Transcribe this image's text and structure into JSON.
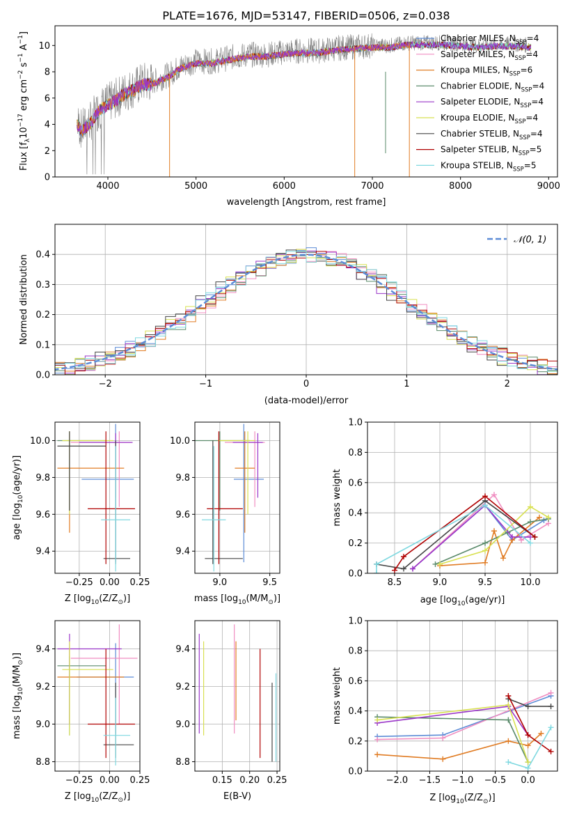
{
  "title": "PLATE=1676, MJD=53147, FIBERID=0506, z=0.038",
  "colors": {
    "chabrier_miles": "#5b8bd6",
    "salpeter_miles": "#f08cc0",
    "kroupa_miles": "#e07b22",
    "chabrier_elodie": "#5a8a6a",
    "salpeter_elodie": "#9a35c8",
    "kroupa_elodie": "#d8e050",
    "chabrier_stelib": "#444444",
    "salpeter_stelib": "#b00000",
    "kroupa_stelib": "#7ed8e0",
    "data": "#808080",
    "gaussian": "#5b8bd6"
  },
  "legend_spectrum": [
    {
      "pre": "Chabrier MILES, N",
      "sub": "SSP",
      "post": "=4",
      "color_key": "chabrier_miles"
    },
    {
      "pre": "Salpeter MILES, N",
      "sub": "SSP",
      "post": "=4",
      "color_key": "salpeter_miles"
    },
    {
      "pre": "Kroupa MILES, N",
      "sub": "SSP",
      "post": "=6",
      "color_key": "kroupa_miles"
    },
    {
      "pre": "Chabrier ELODIE, N",
      "sub": "SSP",
      "post": "=4",
      "color_key": "chabrier_elodie"
    },
    {
      "pre": "Salpeter ELODIE, N",
      "sub": "SSP",
      "post": "=4",
      "color_key": "salpeter_elodie"
    },
    {
      "pre": "Kroupa ELODIE, N",
      "sub": "SSP",
      "post": "=4",
      "color_key": "kroupa_elodie"
    },
    {
      "pre": "Chabrier STELIB, N",
      "sub": "SSP",
      "post": "=4",
      "color_key": "chabrier_stelib"
    },
    {
      "pre": "Salpeter STELIB, N",
      "sub": "SSP",
      "post": "=5",
      "color_key": "salpeter_stelib"
    },
    {
      "pre": "Kroupa STELIB, N",
      "sub": "SSP",
      "post": "=5",
      "color_key": "kroupa_stelib"
    }
  ],
  "legend_hist": {
    "label": "𝒩(0, 1)",
    "color_key": "gaussian"
  },
  "chart_data": [
    {
      "id": "spectrum",
      "type": "line",
      "xlabel": "wavelength [Angstrom, rest frame]",
      "ylabel": "Flux [f",
      "ylabel_parts": [
        "Flux [f",
        "λ",
        "10",
        "−17",
        " erg cm",
        "−2",
        " s",
        "−1",
        " A",
        "−1",
        "]"
      ],
      "xlim": [
        3400,
        9100
      ],
      "ylim": [
        0,
        11.5
      ],
      "xticks": [
        4000,
        5000,
        6000,
        7000,
        8000,
        9000
      ],
      "yticks": [
        0,
        2,
        4,
        6,
        8,
        10
      ],
      "continuum": {
        "x": [
          3650,
          3700,
          3800,
          3900,
          4000,
          4100,
          4200,
          4300,
          4400,
          4500,
          4600,
          4700,
          4800,
          4900,
          5000,
          5200,
          5400,
          5600,
          5800,
          6000,
          6200,
          6400,
          6600,
          6800,
          7000,
          7200,
          7400,
          7600,
          7800,
          8000,
          8200,
          8400,
          8600,
          8800
        ],
        "y": [
          4.2,
          3.6,
          4.2,
          5.2,
          5.6,
          6.0,
          6.5,
          6.8,
          7.2,
          7.2,
          7.5,
          7.8,
          8.3,
          8.6,
          8.8,
          8.8,
          9.1,
          9.3,
          9.3,
          9.5,
          9.6,
          9.6,
          9.8,
          9.9,
          10.0,
          10.0,
          10.2,
          10.2,
          10.2,
          10.1,
          10.0,
          10.1,
          10.1,
          10.0
        ]
      },
      "model_dips": [
        {
          "x": 4700,
          "color_key": "kroupa_miles"
        },
        {
          "x": 6800,
          "color_key": "kroupa_miles"
        },
        {
          "x": 7420,
          "color_key": "kroupa_miles"
        }
      ]
    },
    {
      "id": "residual_hist",
      "type": "bar",
      "xlabel": "(data-model)/error",
      "ylabel": "Normed distribution",
      "xlim": [
        -2.5,
        2.5
      ],
      "ylim": [
        0,
        0.5
      ],
      "xticks": [
        -2,
        -1,
        0,
        1,
        2
      ],
      "yticks": [
        0.0,
        0.1,
        0.2,
        0.3,
        0.4
      ],
      "bin_width": 0.1
    },
    {
      "id": "age_vs_Z",
      "type": "scatter",
      "xlabel_parts": [
        "Z [log",
        "10",
        "(Z/Z",
        "⊙",
        ")]"
      ],
      "ylabel_parts": [
        "age  [log",
        "10",
        "(age/yr)]"
      ],
      "xlim": [
        -0.45,
        0.25
      ],
      "ylim": [
        9.28,
        10.1
      ],
      "xticks": [
        -0.25,
        0.0,
        0.25
      ],
      "yticks": [
        9.4,
        9.6,
        9.8,
        10.0
      ],
      "points": [
        {
          "color_key": "chabrier_miles",
          "x": 0.05,
          "xerr": [
            0.28,
            0.15
          ],
          "y": 9.79,
          "yerr": [
            0.45,
            0.3
          ]
        },
        {
          "color_key": "salpeter_miles",
          "x": 0.08,
          "xerr": [
            0.4,
            0.1
          ],
          "y": 9.99,
          "yerr": [
            0.35,
            0.06
          ]
        },
        {
          "color_key": "kroupa_miles",
          "x": -0.33,
          "xerr": [
            0.1,
            0.45
          ],
          "y": 9.85,
          "yerr": [
            0.35,
            0.2
          ]
        },
        {
          "color_key": "chabrier_elodie",
          "x": -0.33,
          "xerr": [
            0.1,
            0.3
          ],
          "y": 10.0,
          "yerr": [
            0.38,
            0.05
          ]
        },
        {
          "color_key": "salpeter_elodie",
          "x": 0.05,
          "xerr": [
            0.3,
            0.14
          ],
          "y": 9.99,
          "yerr": [
            0.3,
            0.05
          ]
        },
        {
          "color_key": "kroupa_elodie",
          "x": -0.33,
          "xerr": [
            0.06,
            0.36
          ],
          "y": 10.0,
          "yerr": [
            0.4,
            0.05
          ]
        },
        {
          "color_key": "chabrier_stelib",
          "x": 0.05,
          "xerr": [
            0.1,
            0.12
          ],
          "y": 9.36,
          "yerr": [
            0.03,
            0.64
          ]
        },
        {
          "color_key": "salpeter_stelib",
          "x": -0.03,
          "xerr": [
            0.15,
            0.24
          ],
          "y": 9.63,
          "yerr": [
            0.3,
            0.42
          ]
        },
        {
          "color_key": "kroupa_stelib",
          "x": 0.05,
          "xerr": [
            0.12,
            0.12
          ],
          "y": 9.57,
          "yerr": [
            0.28,
            0.4
          ]
        },
        {
          "color_key": "chabrier_stelib",
          "x": -0.33,
          "xerr": [
            0.1,
            0.3
          ],
          "y": 9.97,
          "yerr": [
            0.35,
            0.08
          ]
        }
      ]
    },
    {
      "id": "age_vs_mass",
      "type": "scatter",
      "xlabel_parts": [
        "mass [log",
        "10",
        "(M/M",
        "⊙",
        ")]"
      ],
      "xlim": [
        8.75,
        9.6
      ],
      "ylim": [
        9.28,
        10.1
      ],
      "xticks": [
        9.0,
        9.5
      ],
      "yticks": [
        9.4,
        9.6,
        9.8,
        10.0
      ],
      "points": [
        {
          "color_key": "chabrier_miles",
          "x": 9.24,
          "xerr": [
            0.1,
            0.2
          ],
          "y": 9.79,
          "yerr": [
            0.45,
            0.3
          ]
        },
        {
          "color_key": "salpeter_miles",
          "x": 9.35,
          "xerr": [
            0.3,
            0.1
          ],
          "y": 9.99,
          "yerr": [
            0.35,
            0.06
          ]
        },
        {
          "color_key": "kroupa_miles",
          "x": 9.25,
          "xerr": [
            0.1,
            0.1
          ],
          "y": 9.85,
          "yerr": [
            0.35,
            0.2
          ]
        },
        {
          "color_key": "chabrier_elodie",
          "x": 9.0,
          "xerr": [
            0.25,
            0.3
          ],
          "y": 10.0,
          "yerr": [
            0.38,
            0.05
          ]
        },
        {
          "color_key": "salpeter_elodie",
          "x": 9.38,
          "xerr": [
            0.25,
            0.05
          ],
          "y": 9.99,
          "yerr": [
            0.3,
            0.05
          ]
        },
        {
          "color_key": "kroupa_elodie",
          "x": 9.28,
          "xerr": [
            0.3,
            0.07
          ],
          "y": 10.0,
          "yerr": [
            0.4,
            0.05
          ]
        },
        {
          "color_key": "chabrier_stelib",
          "x": 8.93,
          "xerr": [
            0.08,
            0.3
          ],
          "y": 9.36,
          "yerr": [
            0.03,
            0.64
          ]
        },
        {
          "color_key": "salpeter_stelib",
          "x": 8.99,
          "xerr": [
            0.12,
            0.24
          ],
          "y": 9.63,
          "yerr": [
            0.3,
            0.42
          ]
        },
        {
          "color_key": "kroupa_stelib",
          "x": 8.94,
          "xerr": [
            0.12,
            0.12
          ],
          "y": 9.57,
          "yerr": [
            0.28,
            0.4
          ]
        }
      ]
    },
    {
      "id": "mass_weight_vs_age",
      "type": "line",
      "xlabel_parts": [
        "age  [log",
        "10",
        "(age/yr)]"
      ],
      "ylabel": "mass weight",
      "xlim": [
        8.2,
        10.3
      ],
      "ylim": [
        0,
        1.0
      ],
      "xticks": [
        8.5,
        9.0,
        9.5,
        10.0
      ],
      "yticks": [
        0.0,
        0.2,
        0.4,
        0.6,
        0.8,
        1.0
      ],
      "series": [
        {
          "color_key": "chabrier_miles",
          "x": [
            8.7,
            9.5,
            9.8,
            10.15
          ],
          "y": [
            0.03,
            0.45,
            0.22,
            0.35
          ]
        },
        {
          "color_key": "salpeter_miles",
          "x": [
            8.7,
            9.6,
            9.9,
            10.2
          ],
          "y": [
            0.03,
            0.52,
            0.22,
            0.33
          ]
        },
        {
          "color_key": "kroupa_miles",
          "x": [
            9.0,
            9.5,
            9.6,
            9.7,
            9.8,
            10.1
          ],
          "y": [
            0.05,
            0.07,
            0.28,
            0.1,
            0.22,
            0.37
          ]
        },
        {
          "color_key": "chabrier_elodie",
          "x": [
            8.95,
            9.5,
            9.75,
            10.0,
            10.2
          ],
          "y": [
            0.06,
            0.2,
            0.27,
            0.34,
            0.36
          ]
        },
        {
          "color_key": "salpeter_elodie",
          "x": [
            8.7,
            9.5,
            9.8,
            10.0
          ],
          "y": [
            0.03,
            0.45,
            0.24,
            0.24
          ]
        },
        {
          "color_key": "kroupa_elodie",
          "x": [
            9.0,
            9.5,
            10.0,
            10.2
          ],
          "y": [
            0.06,
            0.15,
            0.44,
            0.37
          ]
        },
        {
          "color_key": "chabrier_stelib",
          "x": [
            8.3,
            8.6,
            9.5,
            10.05
          ],
          "y": [
            0.06,
            0.03,
            0.48,
            0.24
          ]
        },
        {
          "color_key": "salpeter_stelib",
          "x": [
            8.5,
            8.6,
            9.5,
            10.05
          ],
          "y": [
            0.02,
            0.11,
            0.51,
            0.24
          ]
        },
        {
          "color_key": "kroupa_stelib",
          "x": [
            8.3,
            8.3,
            9.5,
            10.0
          ],
          "y": [
            0.0,
            0.06,
            0.45,
            0.2
          ]
        }
      ]
    },
    {
      "id": "mass_vs_Z",
      "type": "scatter",
      "xlabel_parts": [
        "Z [log",
        "10",
        "(Z/Z",
        "⊙",
        ")]"
      ],
      "ylabel_parts": [
        "mass [log",
        "10",
        "(M/M",
        "⊙",
        ")]"
      ],
      "xlim": [
        -0.45,
        0.25
      ],
      "ylim": [
        8.75,
        9.55
      ],
      "xticks": [
        -0.25,
        0.0,
        0.25
      ],
      "yticks": [
        8.8,
        9.0,
        9.2,
        9.4
      ],
      "points": [
        {
          "color_key": "chabrier_miles",
          "x": 0.05,
          "xerr": [
            0.32,
            0.15
          ],
          "y": 9.25,
          "yerr": [
            0.3,
            0.18
          ]
        },
        {
          "color_key": "salpeter_miles",
          "x": 0.08,
          "xerr": [
            0.4,
            0.15
          ],
          "y": 9.35,
          "yerr": [
            0.35,
            0.18
          ]
        },
        {
          "color_key": "kroupa_miles",
          "x": -0.33,
          "xerr": [
            0.1,
            0.45
          ],
          "y": 9.25,
          "yerr": [
            0.25,
            0.15
          ]
        },
        {
          "color_key": "chabrier_elodie",
          "x": -0.33,
          "xerr": [
            0.1,
            0.3
          ],
          "y": 9.31,
          "yerr": [
            0.37,
            0.05
          ]
        },
        {
          "color_key": "salpeter_elodie",
          "x": -0.33,
          "xerr": [
            0.1,
            0.43
          ],
          "y": 9.4,
          "yerr": [
            0.4,
            0.08
          ]
        },
        {
          "color_key": "kroupa_elodie",
          "x": -0.33,
          "xerr": [
            0.06,
            0.36
          ],
          "y": 9.29,
          "yerr": [
            0.35,
            0.15
          ]
        },
        {
          "color_key": "chabrier_stelib",
          "x": 0.05,
          "xerr": [
            0.1,
            0.15
          ],
          "y": 8.89,
          "yerr": [
            0.07,
            0.33
          ]
        },
        {
          "color_key": "salpeter_stelib",
          "x": -0.03,
          "xerr": [
            0.15,
            0.24
          ],
          "y": 9.0,
          "yerr": [
            0.18,
            0.4
          ]
        },
        {
          "color_key": "kroupa_stelib",
          "x": 0.05,
          "xerr": [
            0.1,
            0.12
          ],
          "y": 8.94,
          "yerr": [
            0.16,
            0.2
          ]
        }
      ]
    },
    {
      "id": "mass_vs_ebv",
      "type": "scatter",
      "xlabel": "E(B-V)",
      "xlim": [
        0.1,
        0.255
      ],
      "ylim": [
        8.75,
        9.55
      ],
      "xticks": [
        0.15,
        0.2,
        0.25
      ],
      "yticks": [
        8.8,
        9.0,
        9.2,
        9.4
      ],
      "points": [
        {
          "color_key": "salpeter_elodie",
          "x": 0.108,
          "y": 9.25,
          "yerr": [
            0.3,
            0.23
          ]
        },
        {
          "color_key": "kroupa_elodie",
          "x": 0.116,
          "y": 9.19,
          "yerr": [
            0.25,
            0.25
          ]
        },
        {
          "color_key": "salpeter_miles",
          "x": 0.172,
          "y": 9.3,
          "yerr": [
            0.35,
            0.23
          ]
        },
        {
          "color_key": "kroupa_miles",
          "x": 0.175,
          "y": 9.22,
          "yerr": [
            0.2,
            0.22
          ]
        },
        {
          "color_key": "salpeter_stelib",
          "x": 0.219,
          "y": 9.11,
          "yerr": [
            0.29,
            0.29
          ]
        },
        {
          "color_key": "chabrier_stelib",
          "x": 0.241,
          "y": 9.0,
          "yerr": [
            0.2,
            0.22
          ]
        },
        {
          "color_key": "kroupa_stelib",
          "x": 0.248,
          "y": 9.05,
          "yerr": [
            0.25,
            0.22
          ]
        }
      ]
    },
    {
      "id": "mass_weight_vs_Z",
      "type": "line",
      "xlabel_parts": [
        "Z [log",
        "10",
        "(Z/Z",
        "⊙",
        ")]"
      ],
      "ylabel": "mass weight",
      "xlim": [
        -2.45,
        0.45
      ],
      "ylim": [
        0,
        1.0
      ],
      "xticks": [
        -2.0,
        -1.5,
        -1.0,
        -0.5,
        0.0
      ],
      "yticks": [
        0.0,
        0.2,
        0.4,
        0.6,
        0.8,
        1.0
      ],
      "series": [
        {
          "color_key": "chabrier_miles",
          "x": [
            -2.3,
            -1.3,
            0.35
          ],
          "y": [
            0.23,
            0.24,
            0.5
          ]
        },
        {
          "color_key": "salpeter_miles",
          "x": [
            -2.3,
            -1.3,
            0.35
          ],
          "y": [
            0.21,
            0.22,
            0.52
          ]
        },
        {
          "color_key": "kroupa_miles",
          "x": [
            -2.3,
            -1.3,
            -0.3,
            0.0,
            0.2
          ],
          "y": [
            0.11,
            0.08,
            0.2,
            0.17,
            0.25
          ]
        },
        {
          "color_key": "chabrier_elodie",
          "x": [
            -2.3,
            -0.3,
            0.0
          ],
          "y": [
            0.36,
            0.34,
            0.06
          ]
        },
        {
          "color_key": "salpeter_elodie",
          "x": [
            -2.3,
            -0.3,
            0.0
          ],
          "y": [
            0.32,
            0.43,
            0.24
          ]
        },
        {
          "color_key": "kroupa_elodie",
          "x": [
            -2.3,
            -0.3,
            0.0
          ],
          "y": [
            0.34,
            0.44,
            0.06
          ]
        },
        {
          "color_key": "chabrier_stelib",
          "x": [
            -0.3,
            0.0,
            0.35
          ],
          "y": [
            0.48,
            0.43,
            0.43
          ]
        },
        {
          "color_key": "salpeter_stelib",
          "x": [
            -0.3,
            0.0,
            0.35
          ],
          "y": [
            0.5,
            0.24,
            0.13
          ]
        },
        {
          "color_key": "kroupa_stelib",
          "x": [
            -0.3,
            0.0,
            0.35
          ],
          "y": [
            0.06,
            0.02,
            0.29
          ]
        }
      ]
    }
  ]
}
